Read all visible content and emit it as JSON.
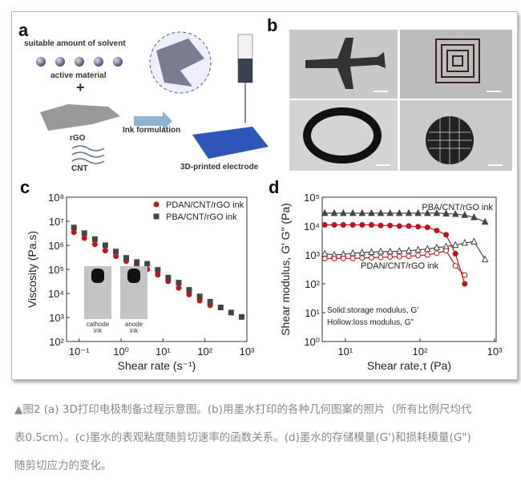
{
  "panel_a": {
    "label": "a",
    "solvent": "suitable amount of solvent",
    "active": "active material",
    "plus": "+",
    "rgo": "rGO",
    "cnt": "CNT",
    "ink": "Ink formulation",
    "electrode": "3D-printed electrode"
  },
  "panel_b": {
    "label": "b",
    "photos": [
      "airplane",
      "square spiral",
      "ring",
      "circular lattice"
    ]
  },
  "chart_data": [
    {
      "type": "scatter",
      "panel_label": "c",
      "xlabel": "Shear rate (s⁻¹)",
      "ylabel": "Viscosity (Pa.s)",
      "xscale": "log",
      "yscale": "log",
      "xlim": [
        0.05,
        1000
      ],
      "ylim": [
        100,
        100000000
      ],
      "xticks": [
        "10⁻¹",
        "10⁰",
        "10¹",
        "10²",
        "10³"
      ],
      "xtick_values": [
        0.1,
        1,
        10,
        100,
        1000
      ],
      "yticks": [
        "10²",
        "10³",
        "10⁴",
        "10⁵",
        "10⁶",
        "10⁷",
        "10⁸"
      ],
      "ytick_values": [
        100,
        1000,
        10000,
        100000,
        1000000,
        10000000,
        100000000
      ],
      "legend_position": "top-right",
      "inset_labels": [
        "cathode ink",
        "anode ink"
      ],
      "series": [
        {
          "name": "PDAN/CNT/rGO ink",
          "color": "#c0141e",
          "marker": "circle",
          "x": [
            0.075,
            0.133,
            0.237,
            0.42,
            0.75,
            1.33,
            2.37,
            4.2,
            7.5,
            13.3,
            23.7,
            42,
            75,
            133
          ],
          "y": [
            3500000,
            2000000,
            1100000,
            600000,
            350000,
            220000,
            150000,
            100000,
            60000,
            32000,
            17000,
            9000,
            5000,
            3200
          ]
        },
        {
          "name": "PBA/CNT/rGO ink",
          "color": "#444444",
          "marker": "square",
          "x": [
            0.075,
            0.133,
            0.237,
            0.42,
            0.75,
            1.33,
            2.37,
            4.2,
            7.5,
            13.3,
            23.7,
            42,
            75,
            133,
            237,
            420,
            750
          ],
          "y": [
            5500000,
            3200000,
            1800000,
            1000000,
            550000,
            300000,
            200000,
            170000,
            95000,
            45000,
            28000,
            14000,
            7500,
            4500,
            2600,
            1600,
            1050
          ]
        }
      ]
    },
    {
      "type": "line",
      "panel_label": "d",
      "xlabel": "Shear rate,τ (Pa)",
      "ylabel": "Shear modulus, G' G\" (Pa)",
      "xscale": "log",
      "yscale": "log",
      "xlim": [
        4.9,
        1050
      ],
      "ylim": [
        1,
        100000
      ],
      "xticks": [
        "10¹",
        "10²",
        "10³"
      ],
      "xtick_values": [
        10,
        100,
        1000
      ],
      "yticks": [
        "10⁰",
        "10¹",
        "10²",
        "10³",
        "10⁴",
        "10⁵"
      ],
      "ytick_values": [
        1,
        10,
        100,
        1000,
        10000,
        100000
      ],
      "annotations": [
        "PBA/CNT/rGO ink",
        "PDAN/CNT/rGO ink",
        "Solid:storage modulus, G'",
        "Hollow:loss modulus, G\""
      ],
      "series": [
        {
          "name": "PBA G'",
          "color": "#444444",
          "marker": "triangle",
          "filled": true,
          "x": [
            5.3,
            7.1,
            9.4,
            12.6,
            16.8,
            22.4,
            29.8,
            39.8,
            53,
            70.8,
            94.4,
            126,
            168,
            224,
            299,
            398,
            531,
            745
          ],
          "y": [
            28000,
            28000,
            28000,
            28000,
            28000,
            28000,
            28000,
            28000,
            28000,
            28000,
            28000,
            28000,
            28000,
            27000,
            26000,
            24000,
            20000,
            14000
          ]
        },
        {
          "name": "PBA G\"",
          "color": "#444444",
          "marker": "triangle",
          "filled": false,
          "x": [
            5.3,
            7.1,
            9.4,
            12.6,
            16.8,
            22.4,
            29.8,
            39.8,
            53,
            70.8,
            94.4,
            126,
            168,
            224,
            299,
            398,
            531,
            745
          ],
          "y": [
            1100,
            1000,
            1050,
            1150,
            1200,
            1250,
            1300,
            1300,
            1350,
            1400,
            1500,
            1600,
            1800,
            1950,
            2200,
            2600,
            2900,
            700
          ]
        },
        {
          "name": "PDAN G'",
          "color": "#c0141e",
          "marker": "circle",
          "filled": true,
          "x": [
            5.3,
            7.1,
            9.4,
            12.6,
            16.8,
            22.4,
            29.8,
            39.8,
            53,
            70.8,
            94.4,
            126,
            168,
            224,
            299,
            398
          ],
          "y": [
            11000,
            11000,
            11000,
            11000,
            11000,
            11000,
            10500,
            10500,
            10000,
            10000,
            9500,
            9000,
            7000,
            5000,
            1100,
            100
          ]
        },
        {
          "name": "PDAN G\"",
          "color": "#c0141e",
          "marker": "circle",
          "filled": false,
          "x": [
            5.3,
            7.1,
            9.4,
            12.6,
            16.8,
            22.4,
            29.8,
            39.8,
            53,
            70.8,
            94.4,
            126,
            168,
            224,
            299,
            398
          ],
          "y": [
            750,
            750,
            760,
            760,
            780,
            800,
            820,
            850,
            870,
            900,
            950,
            1000,
            1150,
            1400,
            420,
            200
          ]
        }
      ]
    }
  ],
  "caption": {
    "line1": "▲图2 (a) 3D打印电极制备过程示意图。(b)用墨水打印的各种几何图案的照片（所有比例尺均代",
    "line2": "表0.5cm）。(c)墨水的表观粘度随剪切速率的函数关系。(d)墨水的存储模量(G')和损耗模量(G\")",
    "line3": "随剪切应力的变化。"
  }
}
